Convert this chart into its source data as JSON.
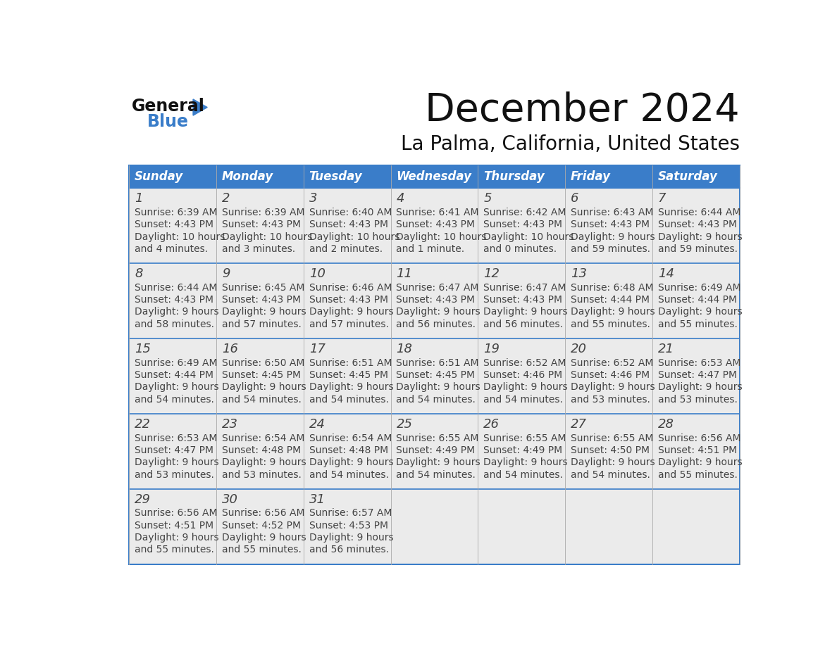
{
  "title": "December 2024",
  "subtitle": "La Palma, California, United States",
  "header_bg": "#3A7DC9",
  "header_text_color": "#FFFFFF",
  "cell_bg": "#EBEBEB",
  "border_color": "#3A7DC9",
  "day_names": [
    "Sunday",
    "Monday",
    "Tuesday",
    "Wednesday",
    "Thursday",
    "Friday",
    "Saturday"
  ],
  "days": [
    {
      "day": 1,
      "col": 0,
      "row": 0,
      "sunrise": "6:39 AM",
      "sunset": "4:43 PM",
      "dl1": "10 hours",
      "dl2": "and 4 minutes."
    },
    {
      "day": 2,
      "col": 1,
      "row": 0,
      "sunrise": "6:39 AM",
      "sunset": "4:43 PM",
      "dl1": "10 hours",
      "dl2": "and 3 minutes."
    },
    {
      "day": 3,
      "col": 2,
      "row": 0,
      "sunrise": "6:40 AM",
      "sunset": "4:43 PM",
      "dl1": "10 hours",
      "dl2": "and 2 minutes."
    },
    {
      "day": 4,
      "col": 3,
      "row": 0,
      "sunrise": "6:41 AM",
      "sunset": "4:43 PM",
      "dl1": "10 hours",
      "dl2": "and 1 minute."
    },
    {
      "day": 5,
      "col": 4,
      "row": 0,
      "sunrise": "6:42 AM",
      "sunset": "4:43 PM",
      "dl1": "10 hours",
      "dl2": "and 0 minutes."
    },
    {
      "day": 6,
      "col": 5,
      "row": 0,
      "sunrise": "6:43 AM",
      "sunset": "4:43 PM",
      "dl1": "9 hours",
      "dl2": "and 59 minutes."
    },
    {
      "day": 7,
      "col": 6,
      "row": 0,
      "sunrise": "6:44 AM",
      "sunset": "4:43 PM",
      "dl1": "9 hours",
      "dl2": "and 59 minutes."
    },
    {
      "day": 8,
      "col": 0,
      "row": 1,
      "sunrise": "6:44 AM",
      "sunset": "4:43 PM",
      "dl1": "9 hours",
      "dl2": "and 58 minutes."
    },
    {
      "day": 9,
      "col": 1,
      "row": 1,
      "sunrise": "6:45 AM",
      "sunset": "4:43 PM",
      "dl1": "9 hours",
      "dl2": "and 57 minutes."
    },
    {
      "day": 10,
      "col": 2,
      "row": 1,
      "sunrise": "6:46 AM",
      "sunset": "4:43 PM",
      "dl1": "9 hours",
      "dl2": "and 57 minutes."
    },
    {
      "day": 11,
      "col": 3,
      "row": 1,
      "sunrise": "6:47 AM",
      "sunset": "4:43 PM",
      "dl1": "9 hours",
      "dl2": "and 56 minutes."
    },
    {
      "day": 12,
      "col": 4,
      "row": 1,
      "sunrise": "6:47 AM",
      "sunset": "4:43 PM",
      "dl1": "9 hours",
      "dl2": "and 56 minutes."
    },
    {
      "day": 13,
      "col": 5,
      "row": 1,
      "sunrise": "6:48 AM",
      "sunset": "4:44 PM",
      "dl1": "9 hours",
      "dl2": "and 55 minutes."
    },
    {
      "day": 14,
      "col": 6,
      "row": 1,
      "sunrise": "6:49 AM",
      "sunset": "4:44 PM",
      "dl1": "9 hours",
      "dl2": "and 55 minutes."
    },
    {
      "day": 15,
      "col": 0,
      "row": 2,
      "sunrise": "6:49 AM",
      "sunset": "4:44 PM",
      "dl1": "9 hours",
      "dl2": "and 54 minutes."
    },
    {
      "day": 16,
      "col": 1,
      "row": 2,
      "sunrise": "6:50 AM",
      "sunset": "4:45 PM",
      "dl1": "9 hours",
      "dl2": "and 54 minutes."
    },
    {
      "day": 17,
      "col": 2,
      "row": 2,
      "sunrise": "6:51 AM",
      "sunset": "4:45 PM",
      "dl1": "9 hours",
      "dl2": "and 54 minutes."
    },
    {
      "day": 18,
      "col": 3,
      "row": 2,
      "sunrise": "6:51 AM",
      "sunset": "4:45 PM",
      "dl1": "9 hours",
      "dl2": "and 54 minutes."
    },
    {
      "day": 19,
      "col": 4,
      "row": 2,
      "sunrise": "6:52 AM",
      "sunset": "4:46 PM",
      "dl1": "9 hours",
      "dl2": "and 54 minutes."
    },
    {
      "day": 20,
      "col": 5,
      "row": 2,
      "sunrise": "6:52 AM",
      "sunset": "4:46 PM",
      "dl1": "9 hours",
      "dl2": "and 53 minutes."
    },
    {
      "day": 21,
      "col": 6,
      "row": 2,
      "sunrise": "6:53 AM",
      "sunset": "4:47 PM",
      "dl1": "9 hours",
      "dl2": "and 53 minutes."
    },
    {
      "day": 22,
      "col": 0,
      "row": 3,
      "sunrise": "6:53 AM",
      "sunset": "4:47 PM",
      "dl1": "9 hours",
      "dl2": "and 53 minutes."
    },
    {
      "day": 23,
      "col": 1,
      "row": 3,
      "sunrise": "6:54 AM",
      "sunset": "4:48 PM",
      "dl1": "9 hours",
      "dl2": "and 53 minutes."
    },
    {
      "day": 24,
      "col": 2,
      "row": 3,
      "sunrise": "6:54 AM",
      "sunset": "4:48 PM",
      "dl1": "9 hours",
      "dl2": "and 54 minutes."
    },
    {
      "day": 25,
      "col": 3,
      "row": 3,
      "sunrise": "6:55 AM",
      "sunset": "4:49 PM",
      "dl1": "9 hours",
      "dl2": "and 54 minutes."
    },
    {
      "day": 26,
      "col": 4,
      "row": 3,
      "sunrise": "6:55 AM",
      "sunset": "4:49 PM",
      "dl1": "9 hours",
      "dl2": "and 54 minutes."
    },
    {
      "day": 27,
      "col": 5,
      "row": 3,
      "sunrise": "6:55 AM",
      "sunset": "4:50 PM",
      "dl1": "9 hours",
      "dl2": "and 54 minutes."
    },
    {
      "day": 28,
      "col": 6,
      "row": 3,
      "sunrise": "6:56 AM",
      "sunset": "4:51 PM",
      "dl1": "9 hours",
      "dl2": "and 55 minutes."
    },
    {
      "day": 29,
      "col": 0,
      "row": 4,
      "sunrise": "6:56 AM",
      "sunset": "4:51 PM",
      "dl1": "9 hours",
      "dl2": "and 55 minutes."
    },
    {
      "day": 30,
      "col": 1,
      "row": 4,
      "sunrise": "6:56 AM",
      "sunset": "4:52 PM",
      "dl1": "9 hours",
      "dl2": "and 55 minutes."
    },
    {
      "day": 31,
      "col": 2,
      "row": 4,
      "sunrise": "6:57 AM",
      "sunset": "4:53 PM",
      "dl1": "9 hours",
      "dl2": "and 56 minutes."
    }
  ],
  "fig_width": 11.88,
  "fig_height": 9.18,
  "dpi": 100
}
